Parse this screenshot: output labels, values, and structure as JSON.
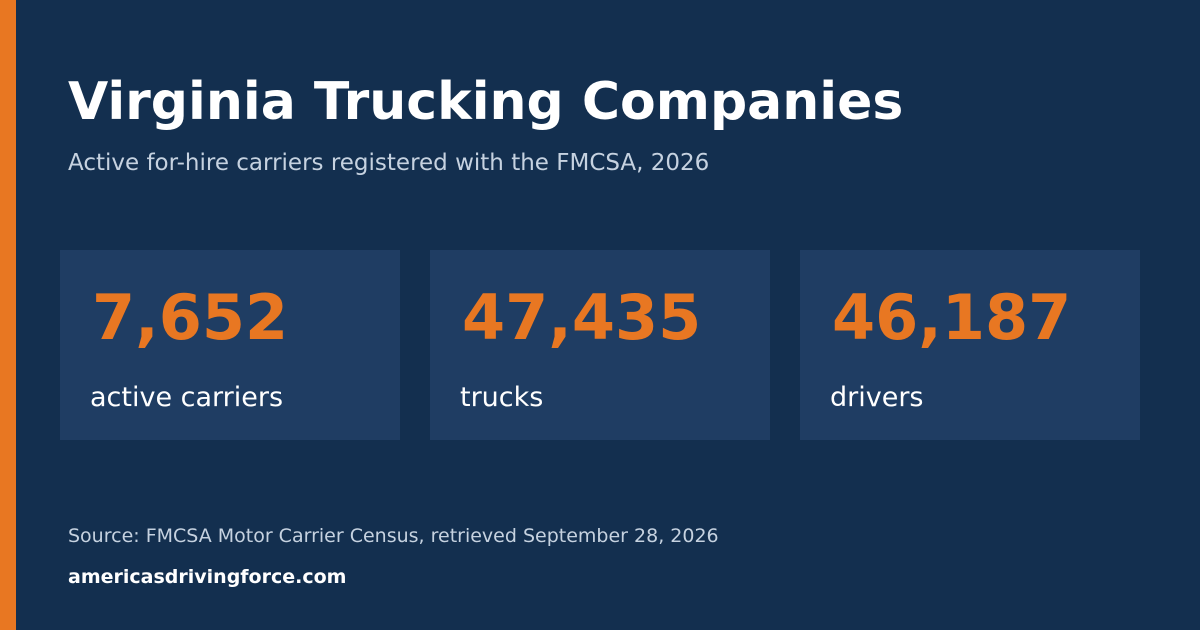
{
  "header": {
    "title": "Virginia Trucking Companies",
    "subtitle": "Active for-hire carriers registered with the FMCSA, 2026"
  },
  "stats": [
    {
      "value": "7,652",
      "label": "active carriers"
    },
    {
      "value": "47,435",
      "label": "trucks"
    },
    {
      "value": "46,187",
      "label": "drivers"
    }
  ],
  "footer": {
    "source": "Source: FMCSA Motor Carrier Census, retrieved September 28, 2026",
    "site": "americasdrivingforce.com"
  },
  "colors": {
    "background": "#132f4f",
    "card": "#1f3d63",
    "accent": "#e87722",
    "text": "#ffffff",
    "muted_text": "#c6d2e0"
  }
}
